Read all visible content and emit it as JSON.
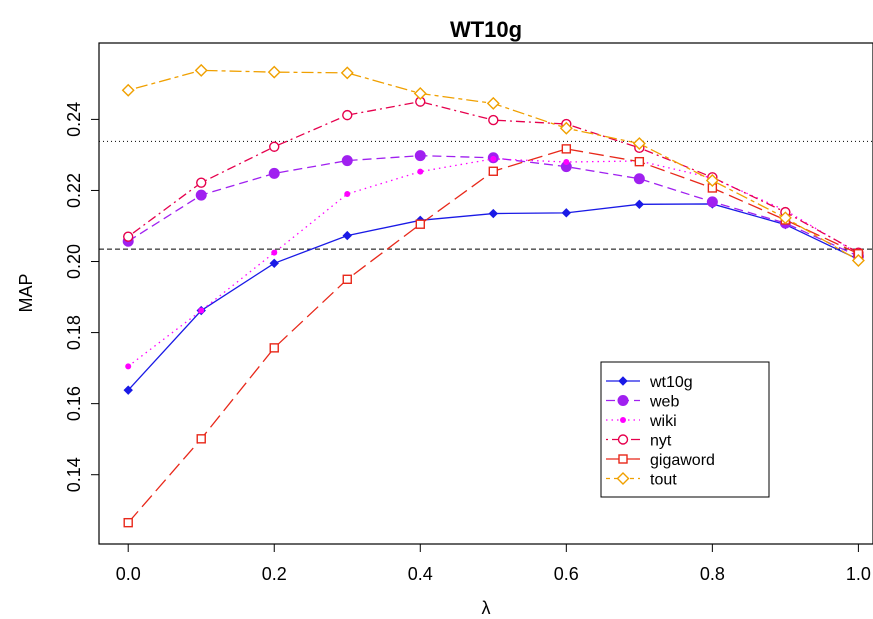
{
  "chart_data": {
    "type": "line",
    "title": "WT10g",
    "xlabel": "λ",
    "ylabel": "MAP",
    "xlim": [
      -0.04,
      1.02
    ],
    "ylim": [
      0.1205,
      0.2615
    ],
    "xticks": [
      "0.0",
      "0.2",
      "0.4",
      "0.6",
      "0.8",
      "1.0"
    ],
    "yticks": [
      "0.14",
      "0.16",
      "0.18",
      "0.20",
      "0.22",
      "0.24"
    ],
    "x": [
      0.0,
      0.1,
      0.2,
      0.3,
      0.4,
      0.5,
      0.6,
      0.7,
      0.8,
      0.9,
      1.0
    ],
    "reference_lines": [
      {
        "y": 0.2338,
        "style": "dotted",
        "color": "#000000"
      },
      {
        "y": 0.2035,
        "style": "dashed",
        "color": "#000000"
      }
    ],
    "legend_position": "bottom-right",
    "series": [
      {
        "name": "wt10g",
        "color": "#1a1ae6",
        "marker": "diamond-filled",
        "dash": "solid",
        "values": [
          0.1638,
          0.1862,
          0.1995,
          0.2073,
          0.2116,
          0.2135,
          0.2137,
          0.2161,
          0.2162,
          0.2104,
          0.2006
        ]
      },
      {
        "name": "web",
        "color": "#a020f0",
        "marker": "circle-filled",
        "dash": "dashed",
        "values": [
          0.2057,
          0.2187,
          0.2248,
          0.2284,
          0.2298,
          0.2292,
          0.2267,
          0.2233,
          0.2168,
          0.2108,
          0.2015
        ]
      },
      {
        "name": "wiki",
        "color": "#ff00ff",
        "marker": "dot-small",
        "dash": "dotted",
        "values": [
          0.1705,
          0.1862,
          0.2025,
          0.219,
          0.2253,
          0.2289,
          0.228,
          0.2283,
          0.2235,
          0.2144,
          0.2022
        ]
      },
      {
        "name": "nyt",
        "color": "#e6004d",
        "marker": "circle-open",
        "dash": "dotdash",
        "values": [
          0.207,
          0.2222,
          0.2323,
          0.2412,
          0.245,
          0.2398,
          0.2387,
          0.232,
          0.2237,
          0.2139,
          0.2025
        ]
      },
      {
        "name": "gigaword",
        "color": "#e8281a",
        "marker": "square-open",
        "dash": "longdash",
        "values": [
          0.1265,
          0.1501,
          0.1757,
          0.195,
          0.2105,
          0.2254,
          0.2317,
          0.2281,
          0.2207,
          0.2117,
          0.2022
        ]
      },
      {
        "name": "tout",
        "color": "#f0a000",
        "marker": "diamond-open",
        "dash": "twodash",
        "values": [
          0.2482,
          0.2538,
          0.2533,
          0.2531,
          0.2473,
          0.2445,
          0.2375,
          0.2332,
          0.2228,
          0.2123,
          0.2003
        ]
      }
    ]
  }
}
